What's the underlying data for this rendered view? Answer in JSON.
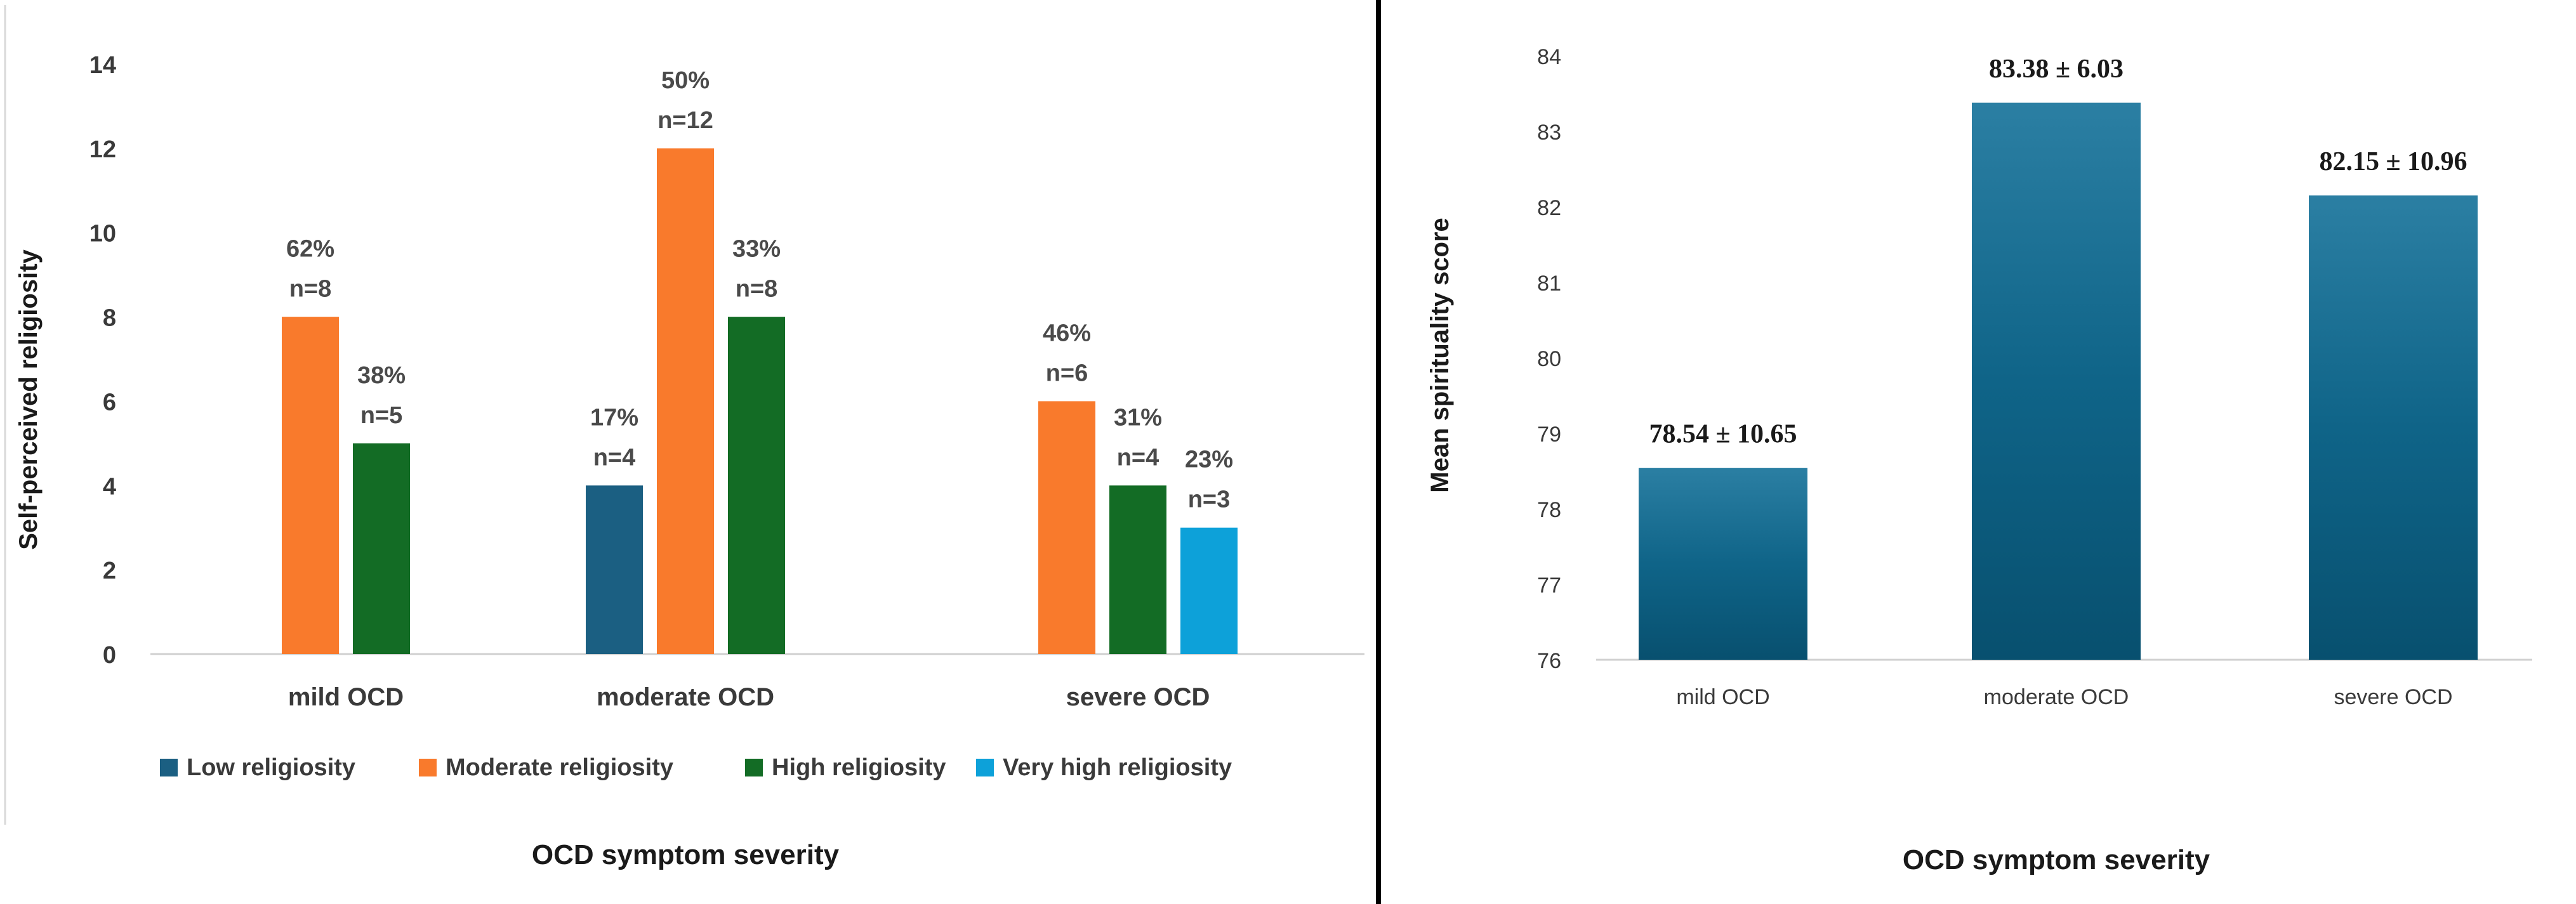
{
  "chart_data": [
    {
      "type": "bar",
      "title": "",
      "xlabel": "OCD symptom severity",
      "ylabel": "Self-perceived religiosity",
      "ylim": [
        0,
        14
      ],
      "yticks": [
        "0",
        "2",
        "4",
        "6",
        "8",
        "10",
        "12",
        "14"
      ],
      "categories": [
        "mild OCD",
        "moderate OCD",
        "severe OCD"
      ],
      "legend_position": "bottom",
      "grid": false,
      "series": [
        {
          "name": "Low religiosity",
          "color": "#1b5f82",
          "values": [
            null,
            4,
            null
          ],
          "pct_labels": [
            null,
            "17%",
            null
          ],
          "n_labels": [
            null,
            "n=4",
            null
          ]
        },
        {
          "name": "Moderate religiosity",
          "color": "#f97a2c",
          "values": [
            8,
            12,
            6
          ],
          "pct_labels": [
            "62%",
            "50%",
            "46%"
          ],
          "n_labels": [
            "n=8",
            "n=12",
            "n=6"
          ]
        },
        {
          "name": "High religiosity",
          "color": "#136c25",
          "values": [
            5,
            8,
            4
          ],
          "pct_labels": [
            "38%",
            "33%",
            "31%"
          ],
          "n_labels": [
            "n=5",
            "n=8",
            "n=4"
          ]
        },
        {
          "name": "Very high religiosity",
          "color": "#0da1d9",
          "values": [
            null,
            null,
            3
          ],
          "pct_labels": [
            null,
            null,
            "23%"
          ],
          "n_labels": [
            null,
            null,
            "n=3"
          ]
        }
      ]
    },
    {
      "type": "bar",
      "title": "",
      "xlabel": "OCD symptom severity",
      "ylabel": "Mean spirituality score",
      "ylim": [
        76,
        84
      ],
      "yticks": [
        "76",
        "77",
        "78",
        "79",
        "80",
        "81",
        "82",
        "83",
        "84"
      ],
      "categories": [
        "mild OCD",
        "moderate OCD",
        "severe OCD"
      ],
      "values": [
        78.54,
        83.38,
        82.15
      ],
      "data_labels": [
        "78.54 ± 10.65",
        "83.38 ± 6.03",
        "82.15 ± 10.96"
      ],
      "color": "#0e6287",
      "grid": false
    }
  ]
}
